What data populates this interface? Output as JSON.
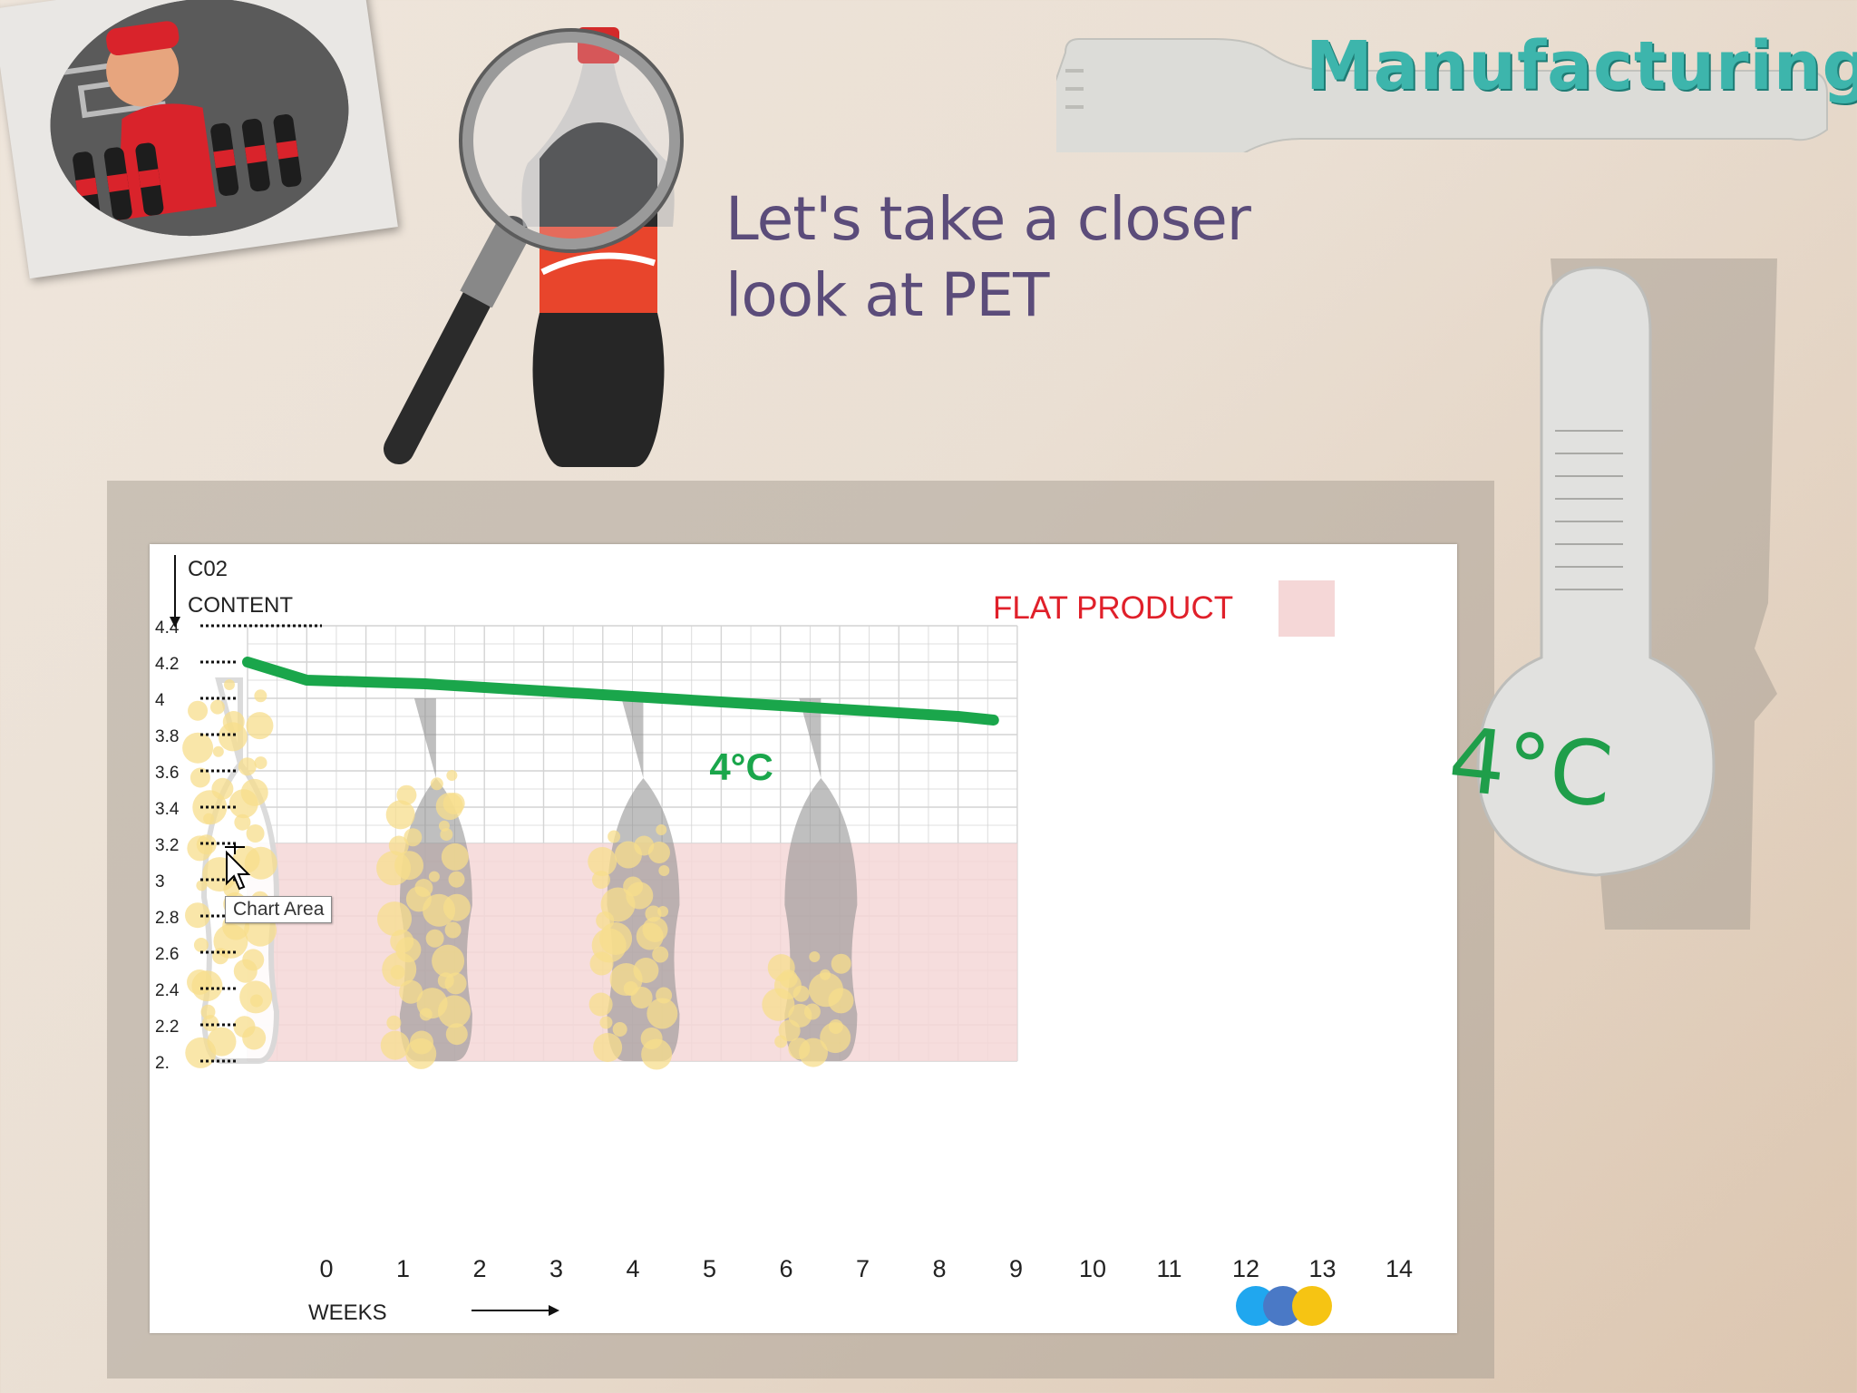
{
  "banner": {
    "title": "Manufacturing"
  },
  "heading": {
    "line1": "Let's take a closer",
    "line2": "look at PET"
  },
  "thermometer": {
    "label": "4°C"
  },
  "tooltip": {
    "text": "Chart Area"
  },
  "icons": {
    "photo": "bottling-worker-photo",
    "magnifier": "magnifying-glass-icon",
    "bottle": "pet-bottle-icon",
    "thermometer": "thermometer-icon",
    "cursor": "move-cursor-icon"
  },
  "colors": {
    "line": "#1aa64b",
    "flat_zone": "#f5d7d7",
    "flat_label": "#e0202a",
    "banner_text": "#3db5ac",
    "heading_text": "#5b4c7a"
  },
  "chart_data": {
    "type": "line",
    "ylabel": "C02\nCONTENT",
    "ylabel_line1": "C02",
    "ylabel_line2": "CONTENT",
    "xlabel": "WEEKS",
    "y_ticks": [
      "4.4",
      "4.2",
      "4",
      "3.8",
      "3.6",
      "3.4",
      "3.2",
      "3",
      "2.8",
      "2.6",
      "2.4",
      "2.2",
      "2."
    ],
    "x_ticks": [
      "0",
      "1",
      "2",
      "3",
      "4",
      "5",
      "6",
      "7",
      "8",
      "9",
      "10",
      "11",
      "12",
      "13",
      "14"
    ],
    "ylim": [
      2.0,
      4.4
    ],
    "xlim": [
      0,
      14
    ],
    "grid": true,
    "series": [
      {
        "name": "4°C",
        "x": [
          0,
          1,
          2,
          3,
          4,
          5,
          6,
          7,
          8,
          9,
          10,
          11,
          12,
          12.6
        ],
        "y": [
          4.2,
          4.1,
          4.09,
          4.08,
          4.06,
          4.04,
          4.02,
          4.0,
          3.98,
          3.96,
          3.94,
          3.92,
          3.9,
          3.88
        ]
      }
    ],
    "flat_zone": {
      "label": "FLAT PRODUCT",
      "y_max": 3.2
    },
    "series_label": "4°C",
    "bottle_levels": [
      {
        "week": 0,
        "fill": 1.0
      },
      {
        "week": 3,
        "fill": 0.8
      },
      {
        "week": 6.5,
        "fill": 0.65
      },
      {
        "week": 9.5,
        "fill": 0.3
      }
    ]
  }
}
